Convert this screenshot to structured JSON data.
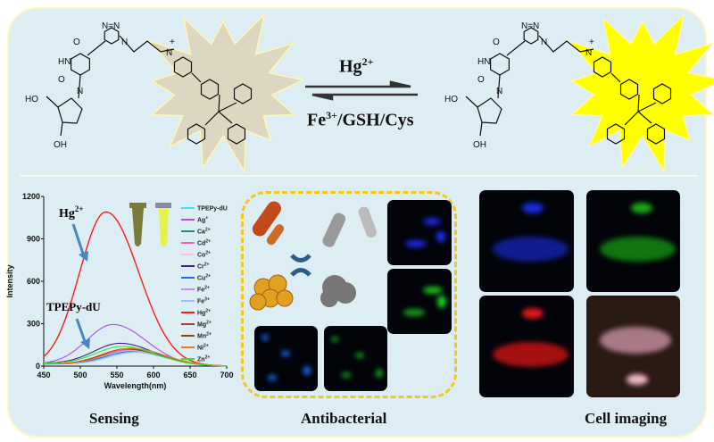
{
  "reaction": {
    "forward": "Hg2+",
    "forward_main": "Hg",
    "forward_sup": "2+",
    "reverse_main": "Fe",
    "reverse_sup": "3+",
    "reverse_rest": "/GSH/Cys",
    "arrow_type": "equilibrium"
  },
  "molecule": {
    "atoms": {
      "o": "O",
      "hn": "HN",
      "n": "N",
      "nplus": "N",
      "plus": "+",
      "ho": "HO",
      "oh": "OH",
      "nn": "N=N"
    },
    "left_glow_color": "#ddd6c1",
    "right_glow_color": "#ffff00"
  },
  "sections": {
    "sensing": "Sensing",
    "antibacterial": "Antibacterial",
    "cell_imaging": "Cell imaging"
  },
  "chart_data": {
    "type": "line",
    "xlabel": "Wavelength(nm)",
    "ylabel": "Intensity",
    "xlim": [
      450,
      700
    ],
    "ylim": [
      0,
      1200
    ],
    "xticks": [
      450,
      500,
      550,
      600,
      650,
      700
    ],
    "yticks": [
      0,
      300,
      600,
      900,
      1200
    ],
    "legend_position": "right",
    "annotations": [
      {
        "main": "Hg",
        "sup": "2+"
      },
      {
        "main": "TPEPy-dU",
        "sup": ""
      }
    ],
    "series": [
      {
        "name": "TPEPy-dU",
        "label": "TPEPy-dU",
        "sup": "",
        "color": "#33e6ee",
        "peak_x": 570,
        "peak_y": 105,
        "base_y": 15
      },
      {
        "name": "Ag+",
        "label": "Ag",
        "sup": "+",
        "color": "#b04cf0",
        "peak_x": 545,
        "peak_y": 285,
        "base_y": 15
      },
      {
        "name": "Ca2+",
        "label": "Ca",
        "sup": "2+",
        "color": "#1f8f86",
        "peak_x": 565,
        "peak_y": 110,
        "base_y": 15
      },
      {
        "name": "Cd2+",
        "label": "Cd",
        "sup": "2+",
        "color": "#ff5bbf",
        "peak_x": 568,
        "peak_y": 108,
        "base_y": 15
      },
      {
        "name": "Co2+",
        "label": "Co",
        "sup": "2+",
        "color": "#ffc0de",
        "peak_x": 570,
        "peak_y": 100,
        "base_y": 15
      },
      {
        "name": "Cr2+",
        "label": "Cr",
        "sup": "2+",
        "color": "#4b1a8a",
        "peak_x": 555,
        "peak_y": 150,
        "base_y": 20
      },
      {
        "name": "Cu2+",
        "label": "Cu",
        "sup": "2+",
        "color": "#1a6cf0",
        "peak_x": 570,
        "peak_y": 95,
        "base_y": 15
      },
      {
        "name": "Fe2+",
        "label": "Fe",
        "sup": "2+",
        "color": "#c98cf5",
        "peak_x": 575,
        "peak_y": 92,
        "base_y": 15
      },
      {
        "name": "Fe3+",
        "label": "Fe",
        "sup": "3+",
        "color": "#8cc4f5",
        "peak_x": 575,
        "peak_y": 90,
        "base_y": 15
      },
      {
        "name": "Hg2+",
        "label": "Hg",
        "sup": "2+",
        "color": "#ff1a1a",
        "peak_x": 535,
        "peak_y": 1090,
        "base_y": 0
      },
      {
        "name": "Mg2+",
        "label": "Mg",
        "sup": "2+",
        "color": "#b03a3a",
        "peak_x": 565,
        "peak_y": 115,
        "base_y": 15
      },
      {
        "name": "Mn2+",
        "label": "Mn",
        "sup": "2+",
        "color": "#8a4a14",
        "peak_x": 565,
        "peak_y": 112,
        "base_y": 15
      },
      {
        "name": "Ni2+",
        "label": "Ni",
        "sup": "2+",
        "color": "#f07a1a",
        "peak_x": 570,
        "peak_y": 118,
        "base_y": 15
      },
      {
        "name": "Zn2+",
        "label": "Zn",
        "sup": "2+",
        "color": "#33e633",
        "peak_x": 558,
        "peak_y": 128,
        "base_y": 20
      }
    ]
  }
}
